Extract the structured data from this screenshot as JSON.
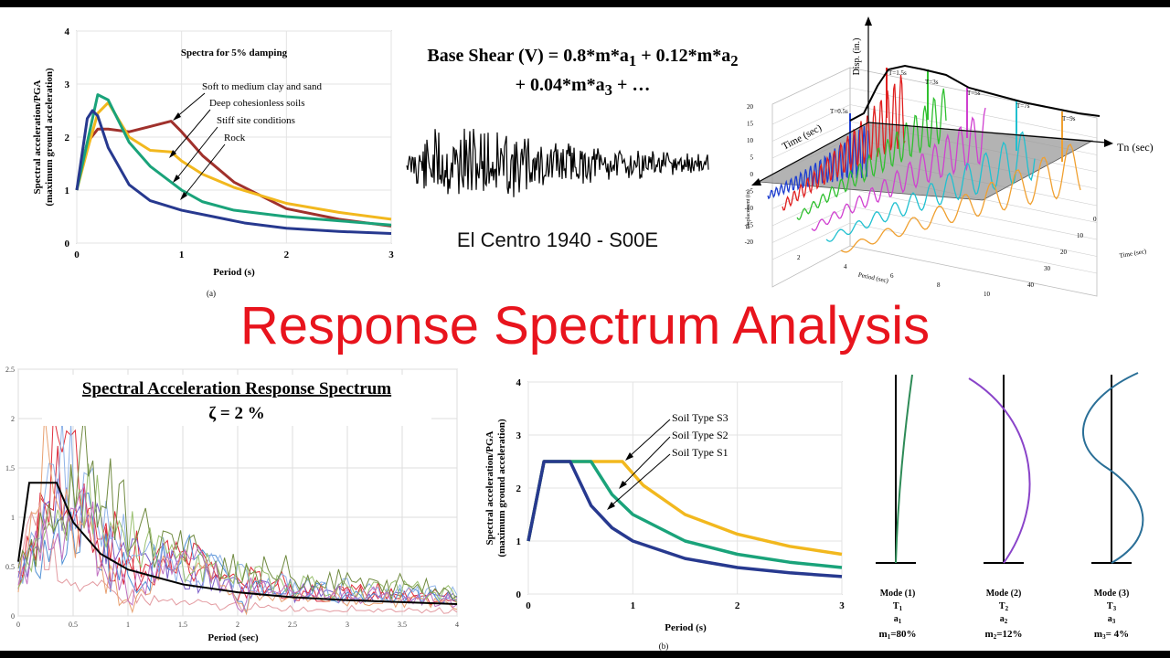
{
  "slide_title": "Response Spectrum Analysis",
  "base_shear": {
    "line1_prefix": "Base Shear (V) = 0.8*m*a",
    "sub1": "1",
    "line1_mid": " + 0.12*m*a",
    "sub2": "2",
    "line2_prefix": "+ 0.04*m*a",
    "sub3": "3",
    "line2_suffix": " + …"
  },
  "elcentro_caption": "El Centro 1940 - S00E",
  "colors": {
    "title_red": "#e8141d",
    "soft_clay": "#a0312c",
    "deep_soil": "#f2b81e",
    "stiff_site": "#1aa37a",
    "rock": "#27398f",
    "soil_s3": "#f2b81e",
    "soil_s2": "#1aa37a",
    "soil_s1": "#27398f"
  },
  "chart_data": [
    {
      "type": "line",
      "title": "Spectra for 5% damping",
      "xlabel": "Period (s)",
      "ylabel_line1": "Spectral acceleration/PGA",
      "ylabel_line2": "(maximum ground acceleration)",
      "caption": "(a)",
      "xlim": [
        0,
        3
      ],
      "ylim": [
        0,
        4
      ],
      "xticks": [
        "0",
        "1",
        "2",
        "3"
      ],
      "yticks": [
        "0",
        "1",
        "2",
        "3",
        "4"
      ],
      "annotations": [
        "Soft to medium clay and sand",
        "Deep cohesionless soils",
        "Stiff site conditions",
        "Rock"
      ],
      "series": [
        {
          "name": "Soft to medium clay and sand",
          "x": [
            0,
            0.1,
            0.2,
            0.3,
            0.5,
            0.7,
            0.9,
            1.0,
            1.2,
            1.5,
            2.0,
            2.5,
            3.0
          ],
          "y": [
            1.0,
            1.9,
            2.15,
            2.15,
            2.1,
            2.2,
            2.3,
            2.1,
            1.65,
            1.15,
            0.65,
            0.45,
            0.32
          ]
        },
        {
          "name": "Deep cohesionless soils",
          "x": [
            0,
            0.1,
            0.2,
            0.3,
            0.5,
            0.7,
            0.9,
            1.0,
            1.2,
            1.5,
            2.0,
            2.5,
            3.0
          ],
          "y": [
            1.0,
            1.75,
            2.45,
            2.65,
            2.0,
            1.75,
            1.72,
            1.55,
            1.3,
            1.05,
            0.75,
            0.58,
            0.45
          ]
        },
        {
          "name": "Stiff site conditions",
          "x": [
            0,
            0.1,
            0.2,
            0.3,
            0.5,
            0.7,
            0.9,
            1.0,
            1.2,
            1.5,
            2.0,
            2.5,
            3.0
          ],
          "y": [
            1.0,
            1.9,
            2.8,
            2.7,
            1.9,
            1.45,
            1.15,
            1.0,
            0.78,
            0.62,
            0.5,
            0.42,
            0.34
          ]
        },
        {
          "name": "Rock",
          "x": [
            0,
            0.1,
            0.15,
            0.2,
            0.3,
            0.5,
            0.7,
            1.0,
            1.3,
            1.6,
            2.0,
            2.5,
            3.0
          ],
          "y": [
            1.0,
            2.35,
            2.5,
            2.4,
            1.8,
            1.1,
            0.8,
            0.62,
            0.5,
            0.38,
            0.28,
            0.22,
            0.18
          ]
        }
      ]
    },
    {
      "type": "line",
      "title": "Spectral Acceleration Response Spectrum",
      "subtitle": "ζ = 2 %",
      "xlabel": "Period (sec)",
      "xlim": [
        0,
        4
      ],
      "ylim": [
        0,
        2.5
      ],
      "xticks": [
        "0",
        "0.5",
        "1",
        "1.5",
        "2",
        "2.5",
        "3",
        "3.5",
        "4"
      ],
      "yticks": [
        "0",
        "0.5",
        "1",
        "1.5",
        "2",
        "2.5"
      ],
      "design_spectrum": {
        "x": [
          0,
          0.1,
          0.35,
          0.5,
          0.75,
          1.0,
          1.5,
          2.0,
          2.5,
          3.0,
          3.5,
          4.0
        ],
        "y": [
          0.55,
          1.35,
          1.35,
          0.95,
          0.63,
          0.47,
          0.32,
          0.24,
          0.19,
          0.16,
          0.14,
          0.12
        ]
      }
    },
    {
      "type": "line",
      "xlabel": "Period (s)",
      "ylabel_line1": "Spectral acceleration/PGA",
      "ylabel_line2": "(maximum ground acceleration)",
      "caption": "(b)",
      "xlim": [
        0,
        3
      ],
      "ylim": [
        0,
        4
      ],
      "xticks": [
        "0",
        "1",
        "2",
        "3"
      ],
      "yticks": [
        "0",
        "1",
        "2",
        "3",
        "4"
      ],
      "series": [
        {
          "name": "Soil Type S3",
          "x": [
            0,
            0.15,
            0.2,
            0.5,
            0.7,
            0.9,
            1.1,
            1.5,
            2.0,
            2.5,
            3.0
          ],
          "y": [
            1.0,
            2.5,
            2.5,
            2.5,
            2.5,
            2.5,
            2.05,
            1.5,
            1.13,
            0.9,
            0.75
          ]
        },
        {
          "name": "Soil Type S2",
          "x": [
            0,
            0.15,
            0.2,
            0.4,
            0.6,
            0.8,
            1.0,
            1.5,
            2.0,
            2.5,
            3.0
          ],
          "y": [
            1.0,
            2.5,
            2.5,
            2.5,
            2.5,
            1.88,
            1.5,
            1.0,
            0.75,
            0.6,
            0.5
          ]
        },
        {
          "name": "Soil Type S1",
          "x": [
            0,
            0.15,
            0.2,
            0.3,
            0.4,
            0.6,
            0.8,
            1.0,
            1.5,
            2.0,
            2.5,
            3.0
          ],
          "y": [
            1.0,
            2.5,
            2.5,
            2.5,
            2.5,
            1.67,
            1.25,
            1.0,
            0.67,
            0.5,
            0.4,
            0.33
          ]
        }
      ]
    },
    {
      "type": "line",
      "axis_top": "Disp. (in.)",
      "axis_time": "Time (sec)",
      "axis_tn": "Tn (sec)",
      "peak_labels": [
        "T=0.5s",
        "T=1.5s",
        "T=3s",
        "T=5s",
        "T=7s",
        "T=9s"
      ],
      "ylabel": "Displacement (in)",
      "xlabel": "Period (sec)",
      "time_label": "Time (sec)",
      "yticks": [
        "20",
        "15",
        "10",
        "5",
        "0",
        "-5",
        "-10",
        "-15",
        "-20"
      ],
      "period_ticks": [
        "2",
        "4",
        "6",
        "8",
        "10"
      ],
      "time_ticks": [
        "0",
        "10",
        "20",
        "30",
        "40"
      ]
    }
  ],
  "modes": [
    {
      "label": "Mode (1)",
      "period": "T",
      "period_sub": "1",
      "accel": "a",
      "accel_sub": "1",
      "mass": "m",
      "mass_sub": "1",
      "mass_value": "=80%"
    },
    {
      "label": "Mode (2)",
      "period": "T",
      "period_sub": "2",
      "accel": "a",
      "accel_sub": "2",
      "mass": "m",
      "mass_sub": "2",
      "mass_value": "=12%"
    },
    {
      "label": "Mode (3)",
      "period": "T",
      "period_sub": "3",
      "accel": "a",
      "accel_sub": "3",
      "mass": "m",
      "mass_sub": "3",
      "mass_value": "= 4%"
    }
  ]
}
